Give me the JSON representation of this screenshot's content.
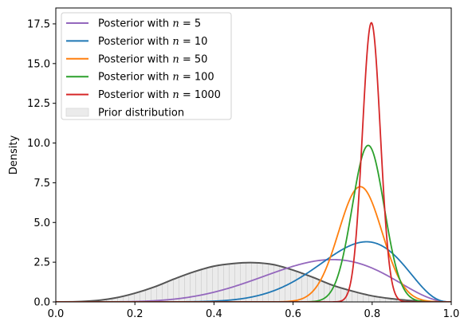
{
  "chart_data": {
    "type": "line",
    "title": "",
    "xlabel": "",
    "ylabel": "Density",
    "xlim": [
      0,
      1
    ],
    "ylim": [
      0,
      18.5
    ],
    "x_ticks": [
      0.0,
      0.2,
      0.4,
      0.6,
      0.8,
      1.0
    ],
    "x_tick_labels": [
      "0.0",
      "0.2",
      "0.4",
      "0.6",
      "0.8",
      "1.0"
    ],
    "y_ticks": [
      0.0,
      2.5,
      5.0,
      7.5,
      10.0,
      12.5,
      15.0,
      17.5
    ],
    "y_tick_labels": [
      "0.0",
      "2.5",
      "5.0",
      "7.5",
      "10.0",
      "12.5",
      "15.0",
      "17.5"
    ],
    "grid": false,
    "legend_position": "top-left",
    "prior": {
      "name": "Prior distribution",
      "color": "#555555",
      "fill_color": "#ebebeb",
      "hatch_color": "#c8c8c8",
      "x": [
        0.0,
        0.05,
        0.1,
        0.15,
        0.2,
        0.25,
        0.3,
        0.35,
        0.4,
        0.45,
        0.5,
        0.55,
        0.6,
        0.65,
        0.7,
        0.75,
        0.8,
        0.85,
        0.9,
        0.95,
        1.0
      ],
      "y": [
        0.0,
        0.01,
        0.08,
        0.25,
        0.55,
        0.95,
        1.45,
        1.9,
        2.25,
        2.42,
        2.47,
        2.35,
        2.0,
        1.55,
        1.05,
        0.68,
        0.38,
        0.2,
        0.08,
        0.02,
        0.0
      ]
    },
    "series": [
      {
        "legend": "Posterior with n = 5",
        "prefix": "Posterior with ",
        "n": "5",
        "color": "#9467bd",
        "type": "beta",
        "a": 6.6,
        "b": 3.4
      },
      {
        "legend": "Posterior with n = 10",
        "prefix": "Posterior with ",
        "n": "10",
        "color": "#1f77b4",
        "type": "beta",
        "a": 12,
        "b": 4
      },
      {
        "legend": "Posterior with n = 50",
        "prefix": "Posterior with ",
        "n": "50",
        "color": "#ff7f0e",
        "type": "normal",
        "mean": 0.77,
        "sd": 0.055
      },
      {
        "legend": "Posterior with n = 100",
        "prefix": "Posterior with ",
        "n": "100",
        "color": "#2ca02c",
        "type": "normal",
        "mean": 0.79,
        "sd": 0.0405
      },
      {
        "legend": "Posterior with n = 1000",
        "prefix": "Posterior with ",
        "n": "1000",
        "color": "#d62728",
        "type": "normal",
        "mean": 0.798,
        "sd": 0.0227
      }
    ]
  }
}
